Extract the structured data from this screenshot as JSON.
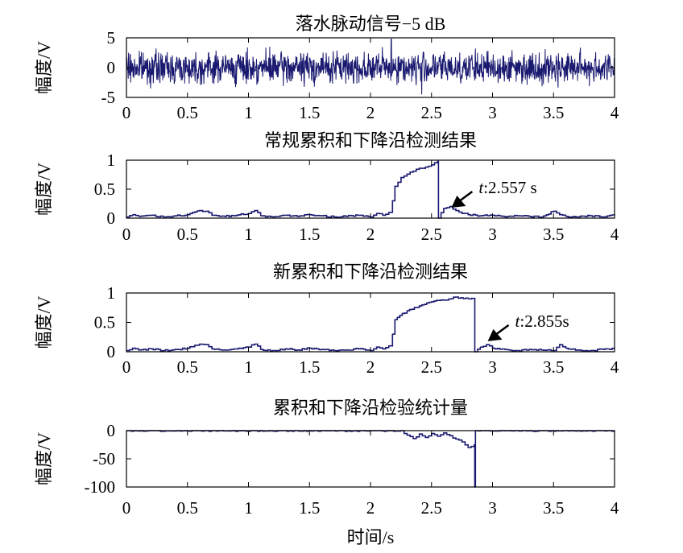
{
  "chart_data": [
    {
      "type": "line",
      "title": "落水脉动信号−5 dB",
      "ylabel": "幅度/V",
      "xlabel": "",
      "xlim": [
        0,
        4
      ],
      "ylim": [
        -5,
        5
      ],
      "xticks": [
        "0",
        "0.5",
        "1",
        "1.5",
        "2",
        "2.5",
        "3",
        "3.5",
        "4"
      ],
      "yticks": [
        "5",
        "0",
        "-5"
      ],
      "yticks_values": [
        5,
        0,
        -5
      ],
      "grid": false,
      "signal": {
        "kind": "noise",
        "amplitude_range": [
          -3.5,
          3.5
        ],
        "burst_peak": 4.8,
        "burst_trough": -4.5,
        "burst_time": 2.17
      },
      "series": [
        {
          "x": [
            0,
            2.17,
            4
          ],
          "values": [
            0,
            4.8,
            0
          ]
        }
      ],
      "color": "#191970"
    },
    {
      "type": "line",
      "title": "常规累积和下降沿检测结果",
      "ylabel": "幅度/V",
      "xlabel": "",
      "xlim": [
        0,
        4
      ],
      "ylim": [
        0,
        1
      ],
      "xticks": [
        "0",
        "0.5",
        "1",
        "1.5",
        "2",
        "2.5",
        "3",
        "3.5",
        "4"
      ],
      "yticks": [
        "1",
        "0.5",
        "0"
      ],
      "yticks_values": [
        1,
        0.5,
        0
      ],
      "grid": false,
      "series": [
        {
          "x": [
            0,
            0.05,
            0.1,
            0.2,
            0.3,
            0.4,
            0.5,
            0.6,
            0.65,
            0.7,
            0.8,
            0.9,
            1.0,
            1.05,
            1.1,
            1.2,
            1.3,
            1.4,
            1.5,
            1.6,
            1.7,
            1.8,
            1.9,
            2.0,
            2.05,
            2.1,
            2.15,
            2.18,
            2.2,
            2.25,
            2.3,
            2.35,
            2.4,
            2.45,
            2.5,
            2.55,
            2.557,
            2.557,
            2.6,
            2.65,
            2.7,
            2.75,
            2.8,
            2.9,
            3.0,
            3.1,
            3.2,
            3.3,
            3.4,
            3.5,
            3.55,
            3.6,
            3.7,
            3.8,
            3.9,
            4.0
          ],
          "values": [
            0.02,
            0.06,
            0.03,
            0.05,
            0.02,
            0.04,
            0.06,
            0.13,
            0.12,
            0.05,
            0.03,
            0.05,
            0.08,
            0.13,
            0.04,
            0.02,
            0.05,
            0.03,
            0.06,
            0.04,
            0.02,
            0.03,
            0.05,
            0.02,
            0.08,
            0.05,
            0.1,
            0.3,
            0.55,
            0.7,
            0.76,
            0.81,
            0.86,
            0.88,
            0.92,
            0.98,
            0.98,
            0.0,
            0.17,
            0.2,
            0.13,
            0.08,
            0.06,
            0.04,
            0.05,
            0.02,
            0.04,
            0.03,
            0.02,
            0.12,
            0.06,
            0.03,
            0.02,
            0.04,
            0.02,
            0.05
          ]
        }
      ],
      "annotation": {
        "text": "t:2.557 s",
        "x": 2.557
      },
      "color": "#191970"
    },
    {
      "type": "line",
      "title": "新累积和下降沿检测结果",
      "ylabel": "幅度/V",
      "xlabel": "",
      "xlim": [
        0,
        4
      ],
      "ylim": [
        0,
        1
      ],
      "xticks": [
        "0",
        "0.5",
        "1",
        "1.5",
        "2",
        "2.5",
        "3",
        "3.5",
        "4"
      ],
      "yticks": [
        "1",
        "0.5",
        "0"
      ],
      "yticks_values": [
        1,
        0.5,
        0
      ],
      "grid": false,
      "series": [
        {
          "x": [
            0,
            0.05,
            0.1,
            0.2,
            0.3,
            0.4,
            0.5,
            0.6,
            0.65,
            0.7,
            0.8,
            0.9,
            1.0,
            1.05,
            1.1,
            1.2,
            1.3,
            1.4,
            1.5,
            1.6,
            1.7,
            1.8,
            1.9,
            2.0,
            2.05,
            2.1,
            2.15,
            2.18,
            2.2,
            2.3,
            2.4,
            2.5,
            2.6,
            2.7,
            2.8,
            2.855,
            2.855,
            2.9,
            2.95,
            3.0,
            3.1,
            3.2,
            3.3,
            3.4,
            3.5,
            3.55,
            3.6,
            3.7,
            3.8,
            3.9,
            4.0
          ],
          "values": [
            0.02,
            0.06,
            0.03,
            0.05,
            0.02,
            0.04,
            0.06,
            0.13,
            0.12,
            0.05,
            0.03,
            0.05,
            0.08,
            0.13,
            0.04,
            0.02,
            0.05,
            0.03,
            0.06,
            0.04,
            0.02,
            0.03,
            0.05,
            0.02,
            0.08,
            0.05,
            0.1,
            0.3,
            0.55,
            0.7,
            0.78,
            0.85,
            0.88,
            0.93,
            0.9,
            0.9,
            0.0,
            0.08,
            0.12,
            0.06,
            0.04,
            0.02,
            0.04,
            0.03,
            0.02,
            0.12,
            0.06,
            0.03,
            0.02,
            0.04,
            0.05
          ]
        }
      ],
      "annotation": {
        "text": "t:2.855s",
        "x": 2.855
      },
      "color": "#191970"
    },
    {
      "type": "line",
      "title": "累积和下降沿检验统计量",
      "ylabel": "幅度/V",
      "xlabel": "时间/s",
      "xlim": [
        0,
        4
      ],
      "ylim": [
        -100,
        0
      ],
      "xticks": [
        "0",
        "0.5",
        "1",
        "1.5",
        "2",
        "2.5",
        "3",
        "3.5",
        "4"
      ],
      "yticks": [
        "0",
        "-50",
        "-100"
      ],
      "yticks_values": [
        0,
        -50,
        -100
      ],
      "grid": false,
      "series": [
        {
          "x": [
            0,
            2.25,
            2.3,
            2.35,
            2.4,
            2.45,
            2.5,
            2.55,
            2.6,
            2.65,
            2.7,
            2.75,
            2.8,
            2.85,
            2.855,
            2.855,
            2.86,
            4.0
          ],
          "values": [
            0,
            0,
            -8,
            -14,
            -6,
            -12,
            -5,
            -10,
            -4,
            -9,
            -15,
            -20,
            -30,
            -25,
            -25,
            -100,
            0,
            0
          ]
        }
      ],
      "color": "#191970"
    }
  ]
}
